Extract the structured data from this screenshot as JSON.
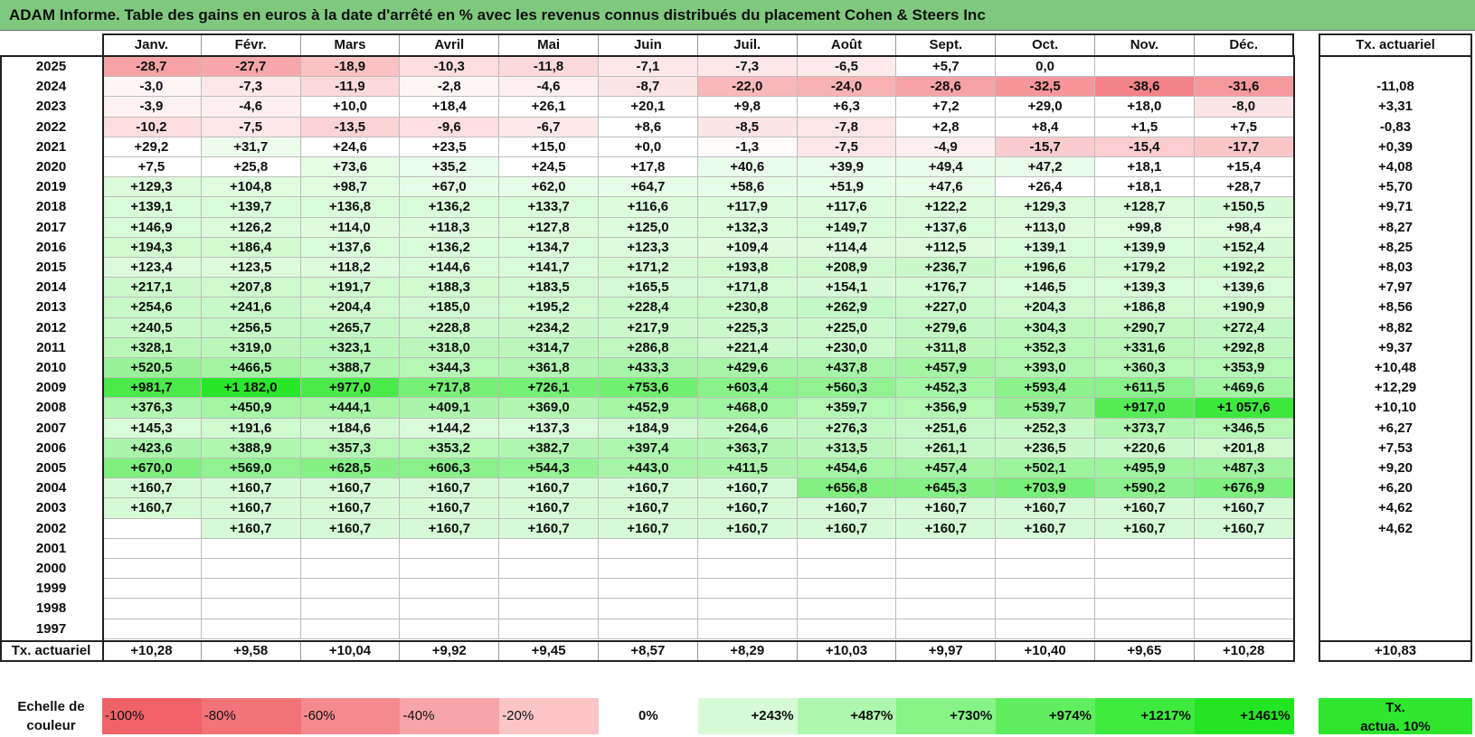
{
  "title": "ADAM Informe. Table des gains en euros à la date d'arrêté en % avec les revenus connus distribués du placement Cohen & Steers Inc",
  "months": [
    "Janv.",
    "Févr.",
    "Mars",
    "Avril",
    "Mai",
    "Juin",
    "Juil.",
    "Août",
    "Sept.",
    "Oct.",
    "Nov.",
    "Déc."
  ],
  "actuarial_header": "Tx. actuariel",
  "rows": [
    {
      "year": "2025",
      "values": [
        "-28,7",
        "-27,7",
        "-18,9",
        "-10,3",
        "-11,8",
        "-7,1",
        "-7,3",
        "-6,5",
        "+5,7",
        "0,0",
        "",
        ""
      ],
      "rate": ""
    },
    {
      "year": "2024",
      "values": [
        "-3,0",
        "-7,3",
        "-11,9",
        "-2,8",
        "-4,6",
        "-8,7",
        "-22,0",
        "-24,0",
        "-28,6",
        "-32,5",
        "-38,6",
        "-31,6"
      ],
      "rate": "-11,08"
    },
    {
      "year": "2023",
      "values": [
        "-3,9",
        "-4,6",
        "+10,0",
        "+18,4",
        "+26,1",
        "+20,1",
        "+9,8",
        "+6,3",
        "+7,2",
        "+29,0",
        "+18,0",
        "-8,0"
      ],
      "rate": "+3,31"
    },
    {
      "year": "2022",
      "values": [
        "-10,2",
        "-7,5",
        "-13,5",
        "-9,6",
        "-6,7",
        "+8,6",
        "-8,5",
        "-7,8",
        "+2,8",
        "+8,4",
        "+1,5",
        "+7,5"
      ],
      "rate": "-0,83"
    },
    {
      "year": "2021",
      "values": [
        "+29,2",
        "+31,7",
        "+24,6",
        "+23,5",
        "+15,0",
        "+0,0",
        "-1,3",
        "-7,5",
        "-4,9",
        "-15,7",
        "-15,4",
        "-17,7"
      ],
      "rate": "+0,39"
    },
    {
      "year": "2020",
      "values": [
        "+7,5",
        "+25,8",
        "+73,6",
        "+35,2",
        "+24,5",
        "+17,8",
        "+40,6",
        "+39,9",
        "+49,4",
        "+47,2",
        "+18,1",
        "+15,4"
      ],
      "rate": "+4,08"
    },
    {
      "year": "2019",
      "values": [
        "+129,3",
        "+104,8",
        "+98,7",
        "+67,0",
        "+62,0",
        "+64,7",
        "+58,6",
        "+51,9",
        "+47,6",
        "+26,4",
        "+18,1",
        "+28,7"
      ],
      "rate": "+5,70"
    },
    {
      "year": "2018",
      "values": [
        "+139,1",
        "+139,7",
        "+136,8",
        "+136,2",
        "+133,7",
        "+116,6",
        "+117,9",
        "+117,6",
        "+122,2",
        "+129,3",
        "+128,7",
        "+150,5"
      ],
      "rate": "+9,71"
    },
    {
      "year": "2017",
      "values": [
        "+146,9",
        "+126,2",
        "+114,0",
        "+118,3",
        "+127,8",
        "+125,0",
        "+132,3",
        "+149,7",
        "+137,6",
        "+113,0",
        "+99,8",
        "+98,4"
      ],
      "rate": "+8,27"
    },
    {
      "year": "2016",
      "values": [
        "+194,3",
        "+186,4",
        "+137,6",
        "+136,2",
        "+134,7",
        "+123,3",
        "+109,4",
        "+114,4",
        "+112,5",
        "+139,1",
        "+139,9",
        "+152,4"
      ],
      "rate": "+8,25"
    },
    {
      "year": "2015",
      "values": [
        "+123,4",
        "+123,5",
        "+118,2",
        "+144,6",
        "+141,7",
        "+171,2",
        "+193,8",
        "+208,9",
        "+236,7",
        "+196,6",
        "+179,2",
        "+192,2"
      ],
      "rate": "+8,03"
    },
    {
      "year": "2014",
      "values": [
        "+217,1",
        "+207,8",
        "+191,7",
        "+188,3",
        "+183,5",
        "+165,5",
        "+171,8",
        "+154,1",
        "+176,7",
        "+146,5",
        "+139,3",
        "+139,6"
      ],
      "rate": "+7,97"
    },
    {
      "year": "2013",
      "values": [
        "+254,6",
        "+241,6",
        "+204,4",
        "+185,0",
        "+195,2",
        "+228,4",
        "+230,8",
        "+262,9",
        "+227,0",
        "+204,3",
        "+186,8",
        "+190,9"
      ],
      "rate": "+8,56"
    },
    {
      "year": "2012",
      "values": [
        "+240,5",
        "+256,5",
        "+265,7",
        "+228,8",
        "+234,2",
        "+217,9",
        "+225,3",
        "+225,0",
        "+279,6",
        "+304,3",
        "+290,7",
        "+272,4"
      ],
      "rate": "+8,82"
    },
    {
      "year": "2011",
      "values": [
        "+328,1",
        "+319,0",
        "+323,1",
        "+318,0",
        "+314,7",
        "+286,8",
        "+221,4",
        "+230,0",
        "+311,8",
        "+352,3",
        "+331,6",
        "+292,8"
      ],
      "rate": "+9,37"
    },
    {
      "year": "2010",
      "values": [
        "+520,5",
        "+466,5",
        "+388,7",
        "+344,3",
        "+361,8",
        "+433,3",
        "+429,6",
        "+437,8",
        "+457,9",
        "+393,0",
        "+360,3",
        "+353,9"
      ],
      "rate": "+10,48"
    },
    {
      "year": "2009",
      "values": [
        "+981,7",
        "+1 182,0",
        "+977,0",
        "+717,8",
        "+726,1",
        "+753,6",
        "+603,4",
        "+560,3",
        "+452,3",
        "+593,4",
        "+611,5",
        "+469,6"
      ],
      "rate": "+12,29"
    },
    {
      "year": "2008",
      "values": [
        "+376,3",
        "+450,9",
        "+444,1",
        "+409,1",
        "+369,0",
        "+452,9",
        "+468,0",
        "+359,7",
        "+356,9",
        "+539,7",
        "+917,0",
        "+1 057,6"
      ],
      "rate": "+10,10"
    },
    {
      "year": "2007",
      "values": [
        "+145,3",
        "+191,6",
        "+184,6",
        "+144,2",
        "+137,3",
        "+184,9",
        "+264,6",
        "+276,3",
        "+251,6",
        "+252,3",
        "+373,7",
        "+346,5"
      ],
      "rate": "+6,27"
    },
    {
      "year": "2006",
      "values": [
        "+423,6",
        "+388,9",
        "+357,3",
        "+353,2",
        "+382,7",
        "+397,4",
        "+363,7",
        "+313,5",
        "+261,1",
        "+236,5",
        "+220,6",
        "+201,8"
      ],
      "rate": "+7,53"
    },
    {
      "year": "2005",
      "values": [
        "+670,0",
        "+569,0",
        "+628,5",
        "+606,3",
        "+544,3",
        "+443,0",
        "+411,5",
        "+454,6",
        "+457,4",
        "+502,1",
        "+495,9",
        "+487,3"
      ],
      "rate": "+9,20"
    },
    {
      "year": "2004",
      "values": [
        "+160,7",
        "+160,7",
        "+160,7",
        "+160,7",
        "+160,7",
        "+160,7",
        "+160,7",
        "+656,8",
        "+645,3",
        "+703,9",
        "+590,2",
        "+676,9"
      ],
      "rate": "+6,20"
    },
    {
      "year": "2003",
      "values": [
        "+160,7",
        "+160,7",
        "+160,7",
        "+160,7",
        "+160,7",
        "+160,7",
        "+160,7",
        "+160,7",
        "+160,7",
        "+160,7",
        "+160,7",
        "+160,7"
      ],
      "rate": "+4,62"
    },
    {
      "year": "2002",
      "values": [
        "",
        "+160,7",
        "+160,7",
        "+160,7",
        "+160,7",
        "+160,7",
        "+160,7",
        "+160,7",
        "+160,7",
        "+160,7",
        "+160,7",
        "+160,7"
      ],
      "rate": "+4,62"
    },
    {
      "year": "2001",
      "values": [
        "",
        "",
        "",
        "",
        "",
        "",
        "",
        "",
        "",
        "",
        "",
        ""
      ],
      "rate": ""
    },
    {
      "year": "2000",
      "values": [
        "",
        "",
        "",
        "",
        "",
        "",
        "",
        "",
        "",
        "",
        "",
        ""
      ],
      "rate": ""
    },
    {
      "year": "1999",
      "values": [
        "",
        "",
        "",
        "",
        "",
        "",
        "",
        "",
        "",
        "",
        "",
        ""
      ],
      "rate": ""
    },
    {
      "year": "1998",
      "values": [
        "",
        "",
        "",
        "",
        "",
        "",
        "",
        "",
        "",
        "",
        "",
        ""
      ],
      "rate": ""
    },
    {
      "year": "1997",
      "values": [
        "",
        "",
        "",
        "",
        "",
        "",
        "",
        "",
        "",
        "",
        "",
        ""
      ],
      "rate": ""
    }
  ],
  "footer": {
    "label": "Tx. actuariel",
    "values": [
      "+10,28",
      "+9,58",
      "+10,04",
      "+9,92",
      "+9,45",
      "+8,57",
      "+8,29",
      "+10,03",
      "+9,97",
      "+10,40",
      "+9,65",
      "+10,28"
    ],
    "overall": "+10,83"
  },
  "scale": {
    "label_line1": "Echelle de",
    "label_line2": "couleur",
    "steps": [
      {
        "text": "-100%",
        "color": "#f06268",
        "align": "left"
      },
      {
        "text": "-80%",
        "color": "#f27378",
        "align": "left"
      },
      {
        "text": "-60%",
        "color": "#f48a8e",
        "align": "left"
      },
      {
        "text": "-40%",
        "color": "#f7a5a8",
        "align": "left"
      },
      {
        "text": "-20%",
        "color": "#fbc5c7",
        "align": "left"
      },
      {
        "text": "0%",
        "color": "#ffffff",
        "align": "center"
      },
      {
        "text": "+243%",
        "color": "#d6fbd6",
        "align": "right"
      },
      {
        "text": "+487%",
        "color": "#aef7ae",
        "align": "right"
      },
      {
        "text": "+730%",
        "color": "#86f386",
        "align": "right"
      },
      {
        "text": "+974%",
        "color": "#60ee60",
        "align": "right"
      },
      {
        "text": "+1217%",
        "color": "#3fea3f",
        "align": "right"
      },
      {
        "text": "+1461%",
        "color": "#22e622",
        "align": "right"
      }
    ],
    "legend_line1": "Tx.",
    "legend_line2": "actua. 10%",
    "legend_color": "#2ee62e"
  }
}
